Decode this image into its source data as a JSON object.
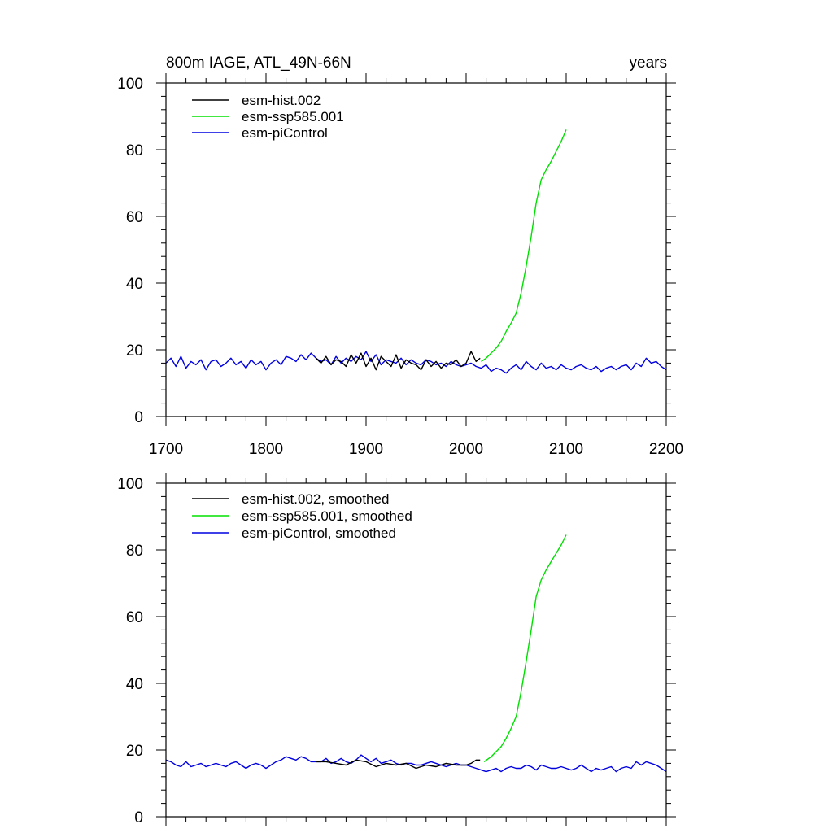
{
  "chart_data": [
    {
      "type": "line",
      "title_left": "800m IAGE, ATL_49N-66N",
      "title_right": "years",
      "xlim": [
        1700,
        2200
      ],
      "ylim": [
        0,
        100
      ],
      "xticks": [
        1700,
        1800,
        1900,
        2000,
        2100,
        2200
      ],
      "yticks": [
        0,
        20,
        40,
        60,
        80,
        100
      ],
      "show_x_tick_labels": true,
      "legend_position": "top-left",
      "series": [
        {
          "name": "esm-hist.002",
          "color": "#000000",
          "x": [
            1850,
            1855,
            1860,
            1865,
            1870,
            1875,
            1880,
            1885,
            1890,
            1895,
            1900,
            1905,
            1910,
            1915,
            1920,
            1925,
            1930,
            1935,
            1940,
            1945,
            1950,
            1955,
            1960,
            1965,
            1970,
            1975,
            1980,
            1985,
            1990,
            1995,
            2000,
            2005,
            2010,
            2014
          ],
          "y": [
            17.5,
            16.0,
            18.0,
            15.5,
            17.0,
            16.5,
            15.0,
            18.5,
            16.0,
            19.0,
            15.0,
            17.5,
            14.0,
            18.0,
            16.5,
            15.0,
            18.5,
            14.5,
            17.0,
            16.0,
            15.5,
            14.0,
            17.0,
            15.0,
            16.5,
            14.5,
            16.0,
            15.5,
            17.0,
            15.0,
            16.0,
            19.5,
            16.5,
            17.5
          ]
        },
        {
          "name": "esm-ssp585.001",
          "color": "#00e000",
          "x": [
            2015,
            2020,
            2025,
            2030,
            2035,
            2040,
            2045,
            2050,
            2055,
            2060,
            2065,
            2070,
            2075,
            2080,
            2085,
            2090,
            2095,
            2100
          ],
          "y": [
            16.5,
            17.5,
            19.0,
            20.5,
            22.5,
            25.5,
            28.0,
            31.0,
            37.0,
            45.0,
            54.0,
            64.0,
            71.0,
            74.0,
            76.5,
            79.5,
            82.5,
            86.0
          ]
        },
        {
          "name": "esm-piControl",
          "color": "#0000e0",
          "x": [
            1700,
            1705,
            1710,
            1715,
            1720,
            1725,
            1730,
            1735,
            1740,
            1745,
            1750,
            1755,
            1760,
            1765,
            1770,
            1775,
            1780,
            1785,
            1790,
            1795,
            1800,
            1805,
            1810,
            1815,
            1820,
            1825,
            1830,
            1835,
            1840,
            1845,
            1850,
            1855,
            1860,
            1865,
            1870,
            1875,
            1880,
            1885,
            1890,
            1895,
            1900,
            1905,
            1910,
            1915,
            1920,
            1925,
            1930,
            1935,
            1940,
            1945,
            1950,
            1955,
            1960,
            1965,
            1970,
            1975,
            1980,
            1985,
            1990,
            1995,
            2000,
            2005,
            2010,
            2015,
            2020,
            2025,
            2030,
            2035,
            2040,
            2045,
            2050,
            2055,
            2060,
            2065,
            2070,
            2075,
            2080,
            2085,
            2090,
            2095,
            2100,
            2105,
            2110,
            2115,
            2120,
            2125,
            2130,
            2135,
            2140,
            2145,
            2150,
            2155,
            2160,
            2165,
            2170,
            2175,
            2180,
            2185,
            2190,
            2195,
            2200
          ],
          "y": [
            16.0,
            17.5,
            15.0,
            18.0,
            14.5,
            16.5,
            15.5,
            17.0,
            14.0,
            16.5,
            17.0,
            15.0,
            16.0,
            17.5,
            15.5,
            16.5,
            14.5,
            17.0,
            15.5,
            16.5,
            14.0,
            16.0,
            17.0,
            15.5,
            18.0,
            17.5,
            16.5,
            18.5,
            17.0,
            19.0,
            17.5,
            16.5,
            17.0,
            15.5,
            18.0,
            16.0,
            17.5,
            16.5,
            18.0,
            17.0,
            19.5,
            16.5,
            18.5,
            15.5,
            17.0,
            16.5,
            16.0,
            17.5,
            15.5,
            17.0,
            16.0,
            15.5,
            17.0,
            16.5,
            15.5,
            16.0,
            15.0,
            16.5,
            15.5,
            15.0,
            15.5,
            16.0,
            15.0,
            14.5,
            15.5,
            13.5,
            14.5,
            14.0,
            13.0,
            14.5,
            15.5,
            14.0,
            16.5,
            15.0,
            14.0,
            16.0,
            14.5,
            15.0,
            14.0,
            15.5,
            14.5,
            14.0,
            15.0,
            15.5,
            14.5,
            14.0,
            15.0,
            13.5,
            14.5,
            15.0,
            14.0,
            15.0,
            15.5,
            14.0,
            16.0,
            15.0,
            17.5,
            16.0,
            16.5,
            15.0,
            14.0
          ]
        }
      ]
    },
    {
      "type": "line",
      "xlim": [
        1700,
        2200
      ],
      "ylim": [
        0,
        100
      ],
      "xticks": [
        1700,
        1800,
        1900,
        2000,
        2100,
        2200
      ],
      "yticks": [
        0,
        20,
        40,
        60,
        80,
        100
      ],
      "show_x_tick_labels": false,
      "legend_position": "top-left",
      "series": [
        {
          "name": "esm-hist.002, smoothed",
          "color": "#000000",
          "x": [
            1850,
            1860,
            1870,
            1880,
            1890,
            1900,
            1910,
            1920,
            1930,
            1940,
            1950,
            1960,
            1970,
            1980,
            1990,
            2000,
            2005,
            2010,
            2014
          ],
          "y": [
            16.5,
            16.5,
            16.0,
            15.5,
            17.0,
            16.5,
            15.0,
            16.0,
            15.5,
            16.0,
            14.5,
            15.5,
            15.0,
            16.0,
            15.5,
            15.5,
            16.0,
            17.0,
            17.0
          ]
        },
        {
          "name": "esm-ssp585.001, smoothed",
          "color": "#00e000",
          "x": [
            2018,
            2025,
            2030,
            2035,
            2040,
            2045,
            2050,
            2055,
            2060,
            2065,
            2070,
            2075,
            2080,
            2085,
            2090,
            2095,
            2100
          ],
          "y": [
            16.5,
            18.0,
            19.5,
            21.0,
            23.5,
            26.5,
            30.0,
            37.5,
            46.5,
            56.0,
            66.0,
            71.0,
            74.0,
            76.5,
            79.0,
            81.5,
            84.5
          ]
        },
        {
          "name": "esm-piControl, smoothed",
          "color": "#0000e0",
          "x": [
            1700,
            1705,
            1710,
            1715,
            1720,
            1725,
            1730,
            1735,
            1740,
            1745,
            1750,
            1755,
            1760,
            1765,
            1770,
            1775,
            1780,
            1785,
            1790,
            1795,
            1800,
            1805,
            1810,
            1815,
            1820,
            1825,
            1830,
            1835,
            1840,
            1845,
            1850,
            1855,
            1860,
            1865,
            1870,
            1875,
            1880,
            1885,
            1890,
            1895,
            1900,
            1905,
            1910,
            1915,
            1920,
            1925,
            1930,
            1935,
            1940,
            1945,
            1950,
            1955,
            1960,
            1965,
            1970,
            1975,
            1980,
            1985,
            1990,
            1995,
            2000,
            2005,
            2010,
            2015,
            2020,
            2025,
            2030,
            2035,
            2040,
            2045,
            2050,
            2055,
            2060,
            2065,
            2070,
            2075,
            2080,
            2085,
            2090,
            2095,
            2100,
            2105,
            2110,
            2115,
            2120,
            2125,
            2130,
            2135,
            2140,
            2145,
            2150,
            2155,
            2160,
            2165,
            2170,
            2175,
            2180,
            2185,
            2190,
            2195,
            2200
          ],
          "y": [
            17.0,
            16.5,
            15.5,
            15.0,
            16.5,
            15.0,
            15.5,
            16.0,
            15.0,
            15.5,
            16.0,
            15.5,
            15.0,
            16.0,
            16.5,
            15.5,
            14.5,
            15.5,
            16.0,
            15.5,
            14.5,
            15.5,
            16.5,
            17.0,
            18.0,
            17.5,
            17.0,
            18.0,
            17.5,
            16.5,
            16.5,
            16.5,
            17.5,
            16.0,
            16.5,
            17.5,
            16.5,
            16.0,
            17.0,
            18.5,
            17.5,
            16.5,
            17.5,
            16.0,
            16.5,
            17.0,
            16.0,
            15.5,
            16.0,
            16.0,
            15.5,
            15.5,
            16.0,
            16.5,
            16.0,
            15.5,
            15.0,
            15.5,
            16.0,
            15.5,
            15.5,
            15.0,
            14.5,
            14.0,
            13.5,
            14.0,
            14.5,
            13.5,
            14.5,
            15.0,
            14.5,
            14.5,
            15.5,
            15.0,
            14.0,
            15.5,
            15.0,
            14.5,
            14.5,
            15.0,
            14.5,
            14.0,
            14.5,
            15.5,
            14.5,
            13.5,
            14.5,
            14.0,
            14.5,
            15.0,
            13.5,
            14.5,
            15.0,
            14.5,
            16.5,
            15.5,
            16.5,
            16.0,
            15.5,
            14.5,
            13.5
          ]
        }
      ]
    }
  ]
}
